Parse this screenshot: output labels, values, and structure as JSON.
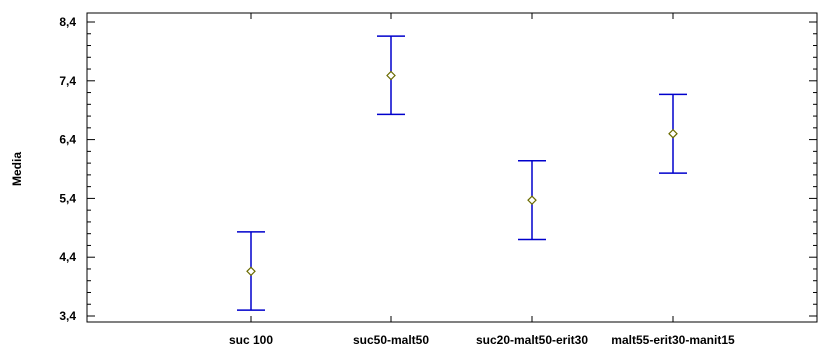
{
  "chart_data": {
    "type": "scatter",
    "subtype": "means-with-interval-bars",
    "title": "",
    "xlabel": "",
    "ylabel": "Media",
    "ylim": [
      3.4,
      8.4
    ],
    "yticks": [
      "8,4",
      "7,4",
      "6,4",
      "5,4",
      "4,4",
      "3,4"
    ],
    "categories": [
      "suc 100",
      "suc50-malt50",
      "suc20-malt50-erit30",
      "malt55-erit30-manit15"
    ],
    "means": [
      4.16,
      7.49,
      5.37,
      6.5
    ],
    "lower": [
      3.5,
      6.83,
      4.7,
      5.83
    ],
    "upper": [
      4.83,
      8.16,
      6.04,
      7.17
    ],
    "grid": false,
    "legend": "none",
    "colors": {
      "interval_bars": "#0000cc",
      "mean_marker": "#6b6b00",
      "axis": "#000000"
    }
  }
}
